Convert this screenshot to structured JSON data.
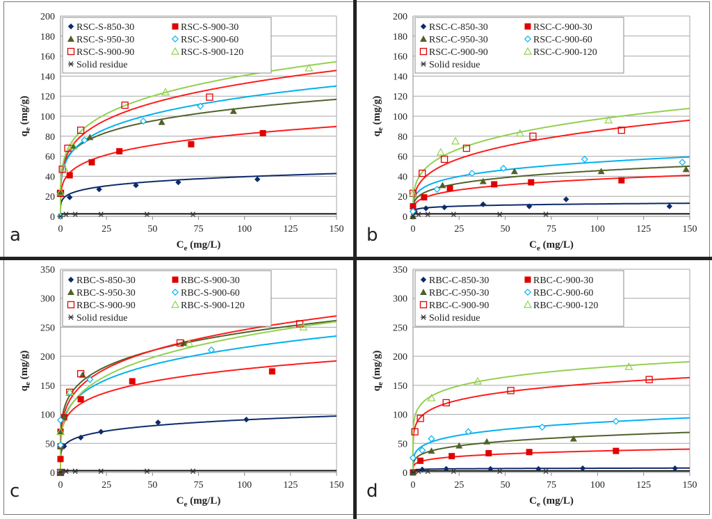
{
  "chart_data": [
    {
      "type": "scatter",
      "panel_letter": "a",
      "xlabel": "Ce (mg/L)",
      "ylabel": "qe (mg/g)",
      "xlim": [
        0,
        150
      ],
      "ylim": [
        0,
        200
      ],
      "xticks": [
        0,
        25,
        50,
        75,
        100,
        125,
        150
      ],
      "yticks": [
        0,
        20,
        40,
        60,
        80,
        100,
        120,
        140,
        160,
        180,
        200
      ],
      "grid": true,
      "legend_position": "top-left",
      "series": [
        {
          "name": "RSC-S-850-30",
          "marker": "diamond",
          "color": "#0d2a6b",
          "fit": {
            "K": 16.5,
            "n": 0.19
          },
          "points": [
            [
              0,
              0
            ],
            [
              5,
              19
            ],
            [
              21,
              27
            ],
            [
              41,
              31
            ],
            [
              64,
              34
            ],
            [
              107,
              37
            ]
          ]
        },
        {
          "name": "RSC-S-900-30",
          "marker": "square-filled",
          "color": "#e00000",
          "fit": {
            "K": 31,
            "n": 0.212
          },
          "points": [
            [
              0,
              23
            ],
            [
              5,
              41
            ],
            [
              17,
              54
            ],
            [
              32,
              65
            ],
            [
              71,
              72
            ],
            [
              110,
              83
            ]
          ]
        },
        {
          "name": "RSC-S-950-30",
          "marker": "triangle-filled",
          "color": "#4f6228",
          "fit": {
            "K": 46,
            "n": 0.186
          },
          "points": [
            [
              0,
              24
            ],
            [
              7,
              70
            ],
            [
              16,
              79
            ],
            [
              55,
              94
            ],
            [
              94,
              105
            ]
          ]
        },
        {
          "name": "RSC-S-900-60",
          "marker": "diamond-open",
          "color": "#00b0f0",
          "fit": {
            "K": 43,
            "n": 0.221
          },
          "points": [
            [
              0,
              0
            ],
            [
              13,
              76
            ],
            [
              45,
              95
            ],
            [
              76,
              110
            ]
          ]
        },
        {
          "name": "RSC-S-900-90",
          "marker": "square-open",
          "color": "#e00000",
          "fit": {
            "K": 46,
            "n": 0.23
          },
          "points": [
            [
              0,
              23
            ],
            [
              1,
              47
            ],
            [
              4,
              68
            ],
            [
              11,
              86
            ],
            [
              35,
              111
            ],
            [
              81,
              119
            ]
          ]
        },
        {
          "name": "RSC-S-900-120",
          "marker": "triangle-open",
          "color": "#92d050",
          "fit": {
            "K": 49,
            "n": 0.229
          },
          "points": [
            [
              0,
              24
            ],
            [
              2,
              48
            ],
            [
              7,
              70
            ],
            [
              57,
              124
            ],
            [
              135,
              148
            ]
          ]
        },
        {
          "name": "Solid residue",
          "marker": "asterisk",
          "color": "#333333",
          "fit": {
            "K": 2.5,
            "n": 0
          },
          "points": [
            [
              0,
              0
            ],
            [
              3,
              2
            ],
            [
              8,
              2
            ],
            [
              22,
              2
            ],
            [
              47,
              2
            ],
            [
              72,
              2
            ]
          ]
        }
      ]
    },
    {
      "type": "scatter",
      "panel_letter": "b",
      "xlabel": "Ce (mg/L)",
      "ylabel": "qe (mg/g)",
      "xlim": [
        0,
        150
      ],
      "ylim": [
        0,
        200
      ],
      "xticks": [
        0,
        25,
        50,
        75,
        100,
        125,
        150
      ],
      "yticks": [
        0,
        20,
        40,
        60,
        80,
        100,
        120,
        140,
        160,
        180,
        200
      ],
      "grid": true,
      "legend_position": "top-left",
      "series": [
        {
          "name": "RSC-C-850-30",
          "marker": "diamond",
          "color": "#0d2a6b",
          "fit": {
            "K": 6.5,
            "n": 0.14
          },
          "points": [
            [
              1,
              5
            ],
            [
              7,
              8
            ],
            [
              17,
              9
            ],
            [
              38,
              12
            ],
            [
              63,
              10
            ],
            [
              83,
              17
            ],
            [
              139,
              10
            ]
          ]
        },
        {
          "name": "RSC-C-900-30",
          "marker": "square-filled",
          "color": "#e00000",
          "fit": {
            "K": 12,
            "n": 0.245
          },
          "points": [
            [
              0,
              10
            ],
            [
              6,
              19
            ],
            [
              20,
              28
            ],
            [
              44,
              32
            ],
            [
              64,
              34
            ],
            [
              113,
              36
            ]
          ]
        },
        {
          "name": "RSC-C-950-30",
          "marker": "triangle-filled",
          "color": "#4f6228",
          "fit": {
            "K": 15.5,
            "n": 0.234
          },
          "points": [
            [
              0,
              0
            ],
            [
              16,
              31
            ],
            [
              38,
              35
            ],
            [
              55,
              45
            ],
            [
              102,
              45
            ],
            [
              148,
              47
            ]
          ]
        },
        {
          "name": "RSC-C-900-60",
          "marker": "diamond-open",
          "color": "#00b0f0",
          "fit": {
            "K": 19.5,
            "n": 0.222
          },
          "points": [
            [
              0,
              5
            ],
            [
              13,
              27
            ],
            [
              32,
              43
            ],
            [
              49,
              48
            ],
            [
              93,
              57
            ],
            [
              146,
              54
            ]
          ]
        },
        {
          "name": "RSC-C-900-90",
          "marker": "square-open",
          "color": "#e00000",
          "fit": {
            "K": 23,
            "n": 0.285
          },
          "points": [
            [
              0,
              23
            ],
            [
              5,
              43
            ],
            [
              17,
              57
            ],
            [
              29,
              68
            ],
            [
              65,
              80
            ],
            [
              113,
              86
            ]
          ]
        },
        {
          "name": "RSC-C-900-120",
          "marker": "triangle-open",
          "color": "#92d050",
          "fit": {
            "K": 29,
            "n": 0.262
          },
          "points": [
            [
              0,
              23
            ],
            [
              15,
              64
            ],
            [
              23,
              75
            ],
            [
              58,
              83
            ],
            [
              106,
              96
            ]
          ]
        },
        {
          "name": "Solid residue",
          "marker": "asterisk",
          "color": "#333333",
          "fit": {
            "K": 2.5,
            "n": 0
          },
          "points": [
            [
              0,
              0
            ],
            [
              3,
              2
            ],
            [
              8,
              2
            ],
            [
              22,
              2
            ],
            [
              47,
              2
            ],
            [
              72,
              2
            ]
          ]
        }
      ]
    },
    {
      "type": "scatter",
      "panel_letter": "c",
      "xlabel": "Ce (mg/L)",
      "ylabel": "qe (mg/g)",
      "xlim": [
        0,
        150
      ],
      "ylim": [
        0,
        350
      ],
      "xticks": [
        0,
        25,
        50,
        75,
        100,
        125,
        150
      ],
      "yticks": [
        0,
        50,
        100,
        150,
        200,
        250,
        300,
        350
      ],
      "grid": true,
      "legend_position": "top-left",
      "series": [
        {
          "name": "RBC-S-850-30",
          "marker": "diamond",
          "color": "#0d2a6b",
          "fit": {
            "K": 41,
            "n": 0.172
          },
          "points": [
            [
              0,
              0
            ],
            [
              2,
              45
            ],
            [
              11,
              60
            ],
            [
              22,
              70
            ],
            [
              53,
              86
            ],
            [
              101,
              91
            ]
          ]
        },
        {
          "name": "RBC-S-900-30",
          "marker": "square-filled",
          "color": "#e00000",
          "fit": {
            "K": 76,
            "n": 0.185
          },
          "points": [
            [
              0,
              23
            ],
            [
              0,
              45
            ],
            [
              0,
              70
            ],
            [
              2,
              95
            ],
            [
              11,
              126
            ],
            [
              39,
              157
            ],
            [
              115,
              174
            ]
          ]
        },
        {
          "name": "RBC-S-950-30",
          "marker": "triangle-filled",
          "color": "#4f6228",
          "fit": {
            "K": 96,
            "n": 0.2
          },
          "points": [
            [
              0,
              0
            ],
            [
              0,
              45
            ],
            [
              0,
              70
            ],
            [
              2,
              95
            ],
            [
              5,
              140
            ],
            [
              12,
              168
            ],
            [
              67,
              223
            ]
          ]
        },
        {
          "name": "RBC-S-900-60",
          "marker": "diamond-open",
          "color": "#00b0f0",
          "fit": {
            "K": 80,
            "n": 0.215
          },
          "points": [
            [
              0,
              47
            ],
            [
              0,
              90
            ],
            [
              5,
              138
            ],
            [
              16,
              160
            ],
            [
              82,
              211
            ]
          ]
        },
        {
          "name": "RBC-S-900-90",
          "marker": "square-open",
          "color": "#e00000",
          "fit": {
            "K": 86,
            "n": 0.228
          },
          "points": [
            [
              0,
              0
            ],
            [
              5,
              138
            ],
            [
              11,
              170
            ],
            [
              65,
              223
            ],
            [
              130,
              256
            ]
          ]
        },
        {
          "name": "RBC-S-900-120",
          "marker": "triangle-open",
          "color": "#92d050",
          "fit": {
            "K": 75,
            "n": 0.248
          },
          "points": [
            [
              0,
              70
            ],
            [
              5,
              138
            ],
            [
              70,
              222
            ],
            [
              132,
              250
            ]
          ]
        },
        {
          "name": "Solid residue",
          "marker": "asterisk",
          "color": "#333333",
          "fit": {
            "K": 3,
            "n": 0
          },
          "points": [
            [
              0,
              0
            ],
            [
              3,
              2
            ],
            [
              8,
              2
            ],
            [
              22,
              2
            ],
            [
              47,
              2
            ],
            [
              72,
              2
            ]
          ]
        }
      ]
    },
    {
      "type": "scatter",
      "panel_letter": "d",
      "xlabel": "Ce (mg/L)",
      "ylabel": "qe (mg/g)",
      "xlim": [
        0,
        150
      ],
      "ylim": [
        0,
        350
      ],
      "xticks": [
        0,
        25,
        50,
        75,
        100,
        125,
        150
      ],
      "yticks": [
        0,
        50,
        100,
        150,
        200,
        250,
        300,
        350
      ],
      "grid": true,
      "legend_position": "top-left",
      "series": [
        {
          "name": "RBC-C-850-30",
          "marker": "diamond",
          "color": "#0d2a6b",
          "fit": {
            "K": 4.5,
            "n": 0.1
          },
          "points": [
            [
              5,
              5
            ],
            [
              18,
              6
            ],
            [
              42,
              6
            ],
            [
              68,
              6
            ],
            [
              92,
              7
            ],
            [
              142,
              7
            ]
          ]
        },
        {
          "name": "RBC-C-900-30",
          "marker": "square-filled",
          "color": "#e00000",
          "fit": {
            "K": 14,
            "n": 0.21
          },
          "points": [
            [
              0,
              0
            ],
            [
              4,
              20
            ],
            [
              21,
              28
            ],
            [
              41,
              33
            ],
            [
              63,
              35
            ],
            [
              110,
              37
            ]
          ]
        },
        {
          "name": "RBC-C-950-30",
          "marker": "triangle-filled",
          "color": "#4f6228",
          "fit": {
            "K": 22,
            "n": 0.228
          },
          "points": [
            [
              0,
              0
            ],
            [
              10,
              37
            ],
            [
              25,
              46
            ],
            [
              40,
              53
            ],
            [
              87,
              58
            ]
          ]
        },
        {
          "name": "RBC-C-900-60",
          "marker": "diamond-open",
          "color": "#00b0f0",
          "fit": {
            "K": 32,
            "n": 0.215
          },
          "points": [
            [
              0,
              25
            ],
            [
              5,
              38
            ],
            [
              10,
              58
            ],
            [
              30,
              70
            ],
            [
              70,
              78
            ],
            [
              110,
              88
            ]
          ]
        },
        {
          "name": "RBC-C-900-90",
          "marker": "square-open",
          "color": "#e00000",
          "fit": {
            "K": 77,
            "n": 0.15
          },
          "points": [
            [
              1,
              70
            ],
            [
              4,
              93
            ],
            [
              18,
              120
            ],
            [
              53,
              141
            ],
            [
              128,
              160
            ]
          ]
        },
        {
          "name": "RBC-C-900-120",
          "marker": "triangle-open",
          "color": "#92d050",
          "fit": {
            "K": 96,
            "n": 0.137
          },
          "points": [
            [
              10,
              128
            ],
            [
              35,
              157
            ],
            [
              117,
              182
            ]
          ]
        },
        {
          "name": "Solid residue",
          "marker": "asterisk",
          "color": "#333333",
          "fit": {
            "K": 2.5,
            "n": 0
          },
          "points": [
            [
              0,
              0
            ],
            [
              3,
              2
            ],
            [
              8,
              2
            ],
            [
              22,
              2
            ],
            [
              47,
              2
            ],
            [
              72,
              2
            ]
          ]
        }
      ]
    }
  ]
}
